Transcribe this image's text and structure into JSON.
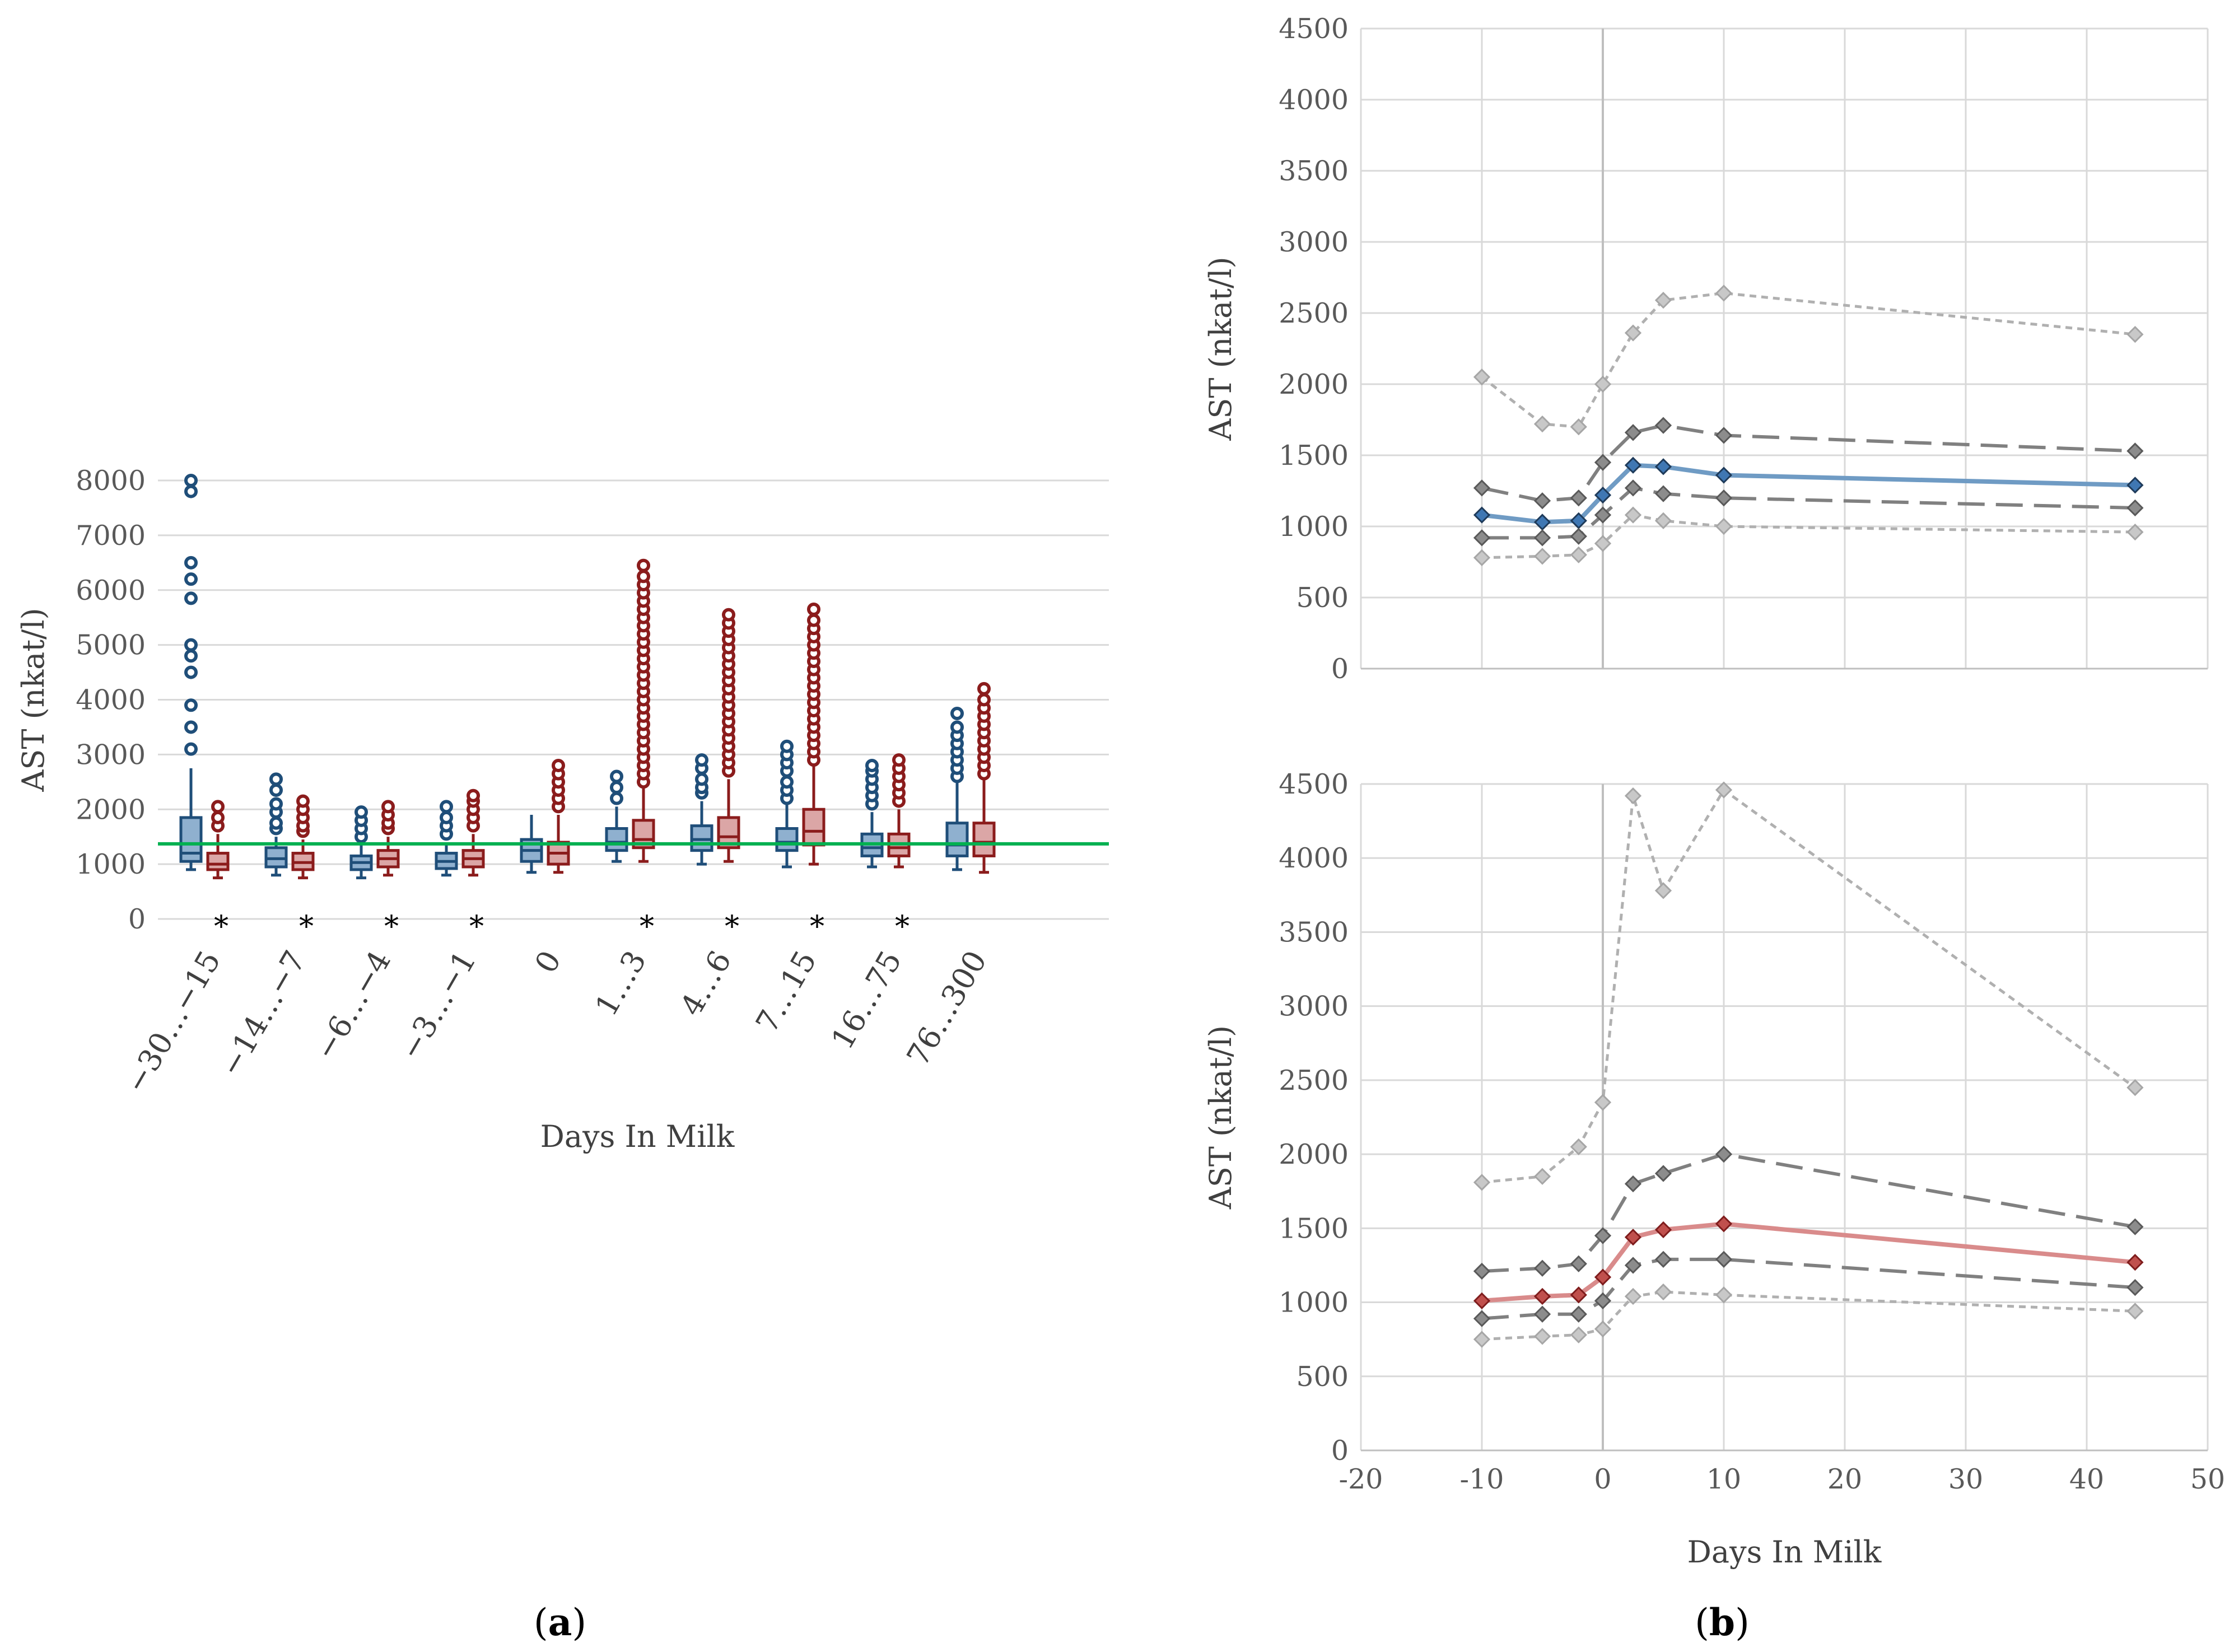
{
  "chart_data": [
    {
      "type": "box",
      "panel_label": "a",
      "xlabel": "Days In Milk",
      "ylabel": "AST (nkat/l)",
      "ylim": [
        0,
        8000
      ],
      "yticks": [
        0,
        1000,
        2000,
        3000,
        4000,
        5000,
        6000,
        7000,
        8000
      ],
      "reference_line": 1370,
      "reference_color": "#00b050",
      "categories": [
        "−30…−15",
        "−14…−7",
        "−6…−4",
        "−3…−1",
        "0",
        "1…3",
        "4…6",
        "7…15",
        "16…75",
        "76…300"
      ],
      "significance": [
        "*",
        "*",
        "*",
        "*",
        "",
        "*",
        "*",
        "*",
        "*",
        ""
      ],
      "series": [
        {
          "color": "#1f4e79",
          "fill": "#8fb0cf",
          "boxes": [
            {
              "whisker_low": 900,
              "q1": 1050,
              "median": 1200,
              "q3": 1850,
              "whisker_high": 2750,
              "outliers": [
                3100,
                3500,
                3900,
                4500,
                4800,
                5000,
                5850,
                6200,
                6500,
                7800,
                8000
              ]
            },
            {
              "whisker_low": 800,
              "q1": 950,
              "median": 1100,
              "q3": 1300,
              "whisker_high": 1500,
              "outliers": [
                1650,
                1750,
                1950,
                2100,
                2350,
                2550
              ]
            },
            {
              "whisker_low": 750,
              "q1": 900,
              "median": 1030,
              "q3": 1150,
              "whisker_high": 1350,
              "outliers": [
                1500,
                1650,
                1800,
                1950
              ]
            },
            {
              "whisker_low": 800,
              "q1": 920,
              "median": 1050,
              "q3": 1200,
              "whisker_high": 1400,
              "outliers": [
                1550,
                1700,
                1850,
                2050
              ]
            },
            {
              "whisker_low": 850,
              "q1": 1050,
              "median": 1250,
              "q3": 1450,
              "whisker_high": 1900,
              "outliers": []
            },
            {
              "whisker_low": 1050,
              "q1": 1250,
              "median": 1400,
              "q3": 1650,
              "whisker_high": 2050,
              "outliers": [
                2200,
                2400,
                2600
              ]
            },
            {
              "whisker_low": 1000,
              "q1": 1250,
              "median": 1450,
              "q3": 1700,
              "whisker_high": 2150,
              "outliers": [
                2300,
                2400,
                2550,
                2750,
                2900
              ]
            },
            {
              "whisker_low": 950,
              "q1": 1250,
              "median": 1400,
              "q3": 1650,
              "whisker_high": 2100,
              "outliers": [
                2200,
                2350,
                2500,
                2700,
                2850,
                3000,
                3150
              ]
            },
            {
              "whisker_low": 950,
              "q1": 1150,
              "median": 1300,
              "q3": 1550,
              "whisker_high": 1950,
              "outliers": [
                2100,
                2250,
                2400,
                2550,
                2700,
                2800
              ]
            },
            {
              "whisker_low": 900,
              "q1": 1150,
              "median": 1350,
              "q3": 1750,
              "whisker_high": 2500,
              "outliers": [
                2600,
                2750,
                2900,
                3050,
                3200,
                3350,
                3500,
                3750
              ]
            }
          ]
        },
        {
          "color": "#8b1c1c",
          "fill": "#dba6a6",
          "boxes": [
            {
              "whisker_low": 750,
              "q1": 900,
              "median": 1000,
              "q3": 1200,
              "whisker_high": 1550,
              "outliers": [
                1700,
                1850,
                2050
              ]
            },
            {
              "whisker_low": 750,
              "q1": 900,
              "median": 1030,
              "q3": 1200,
              "whisker_high": 1450,
              "outliers": [
                1600,
                1700,
                1850,
                2000,
                2150
              ]
            },
            {
              "whisker_low": 800,
              "q1": 950,
              "median": 1100,
              "q3": 1250,
              "whisker_high": 1500,
              "outliers": [
                1650,
                1750,
                1900,
                2050
              ]
            },
            {
              "whisker_low": 800,
              "q1": 950,
              "median": 1100,
              "q3": 1250,
              "whisker_high": 1550,
              "outliers": [
                1700,
                1850,
                2000,
                2150,
                2250
              ]
            },
            {
              "whisker_low": 850,
              "q1": 1000,
              "median": 1200,
              "q3": 1400,
              "whisker_high": 1900,
              "outliers": [
                2050,
                2200,
                2350,
                2500,
                2650,
                2800
              ]
            },
            {
              "whisker_low": 1050,
              "q1": 1300,
              "median": 1450,
              "q3": 1800,
              "whisker_high": 2400,
              "outliers": [
                2500,
                2650,
                2800,
                2950,
                3100,
                3250,
                3400,
                3550,
                3700,
                3850,
                4000,
                4150,
                4300,
                4450,
                4600,
                4750,
                4900,
                5050,
                5200,
                5350,
                5500,
                5650,
                5800,
                5950,
                6100,
                6250,
                6450
              ]
            },
            {
              "whisker_low": 1050,
              "q1": 1300,
              "median": 1500,
              "q3": 1850,
              "whisker_high": 2550,
              "outliers": [
                2700,
                2850,
                3000,
                3150,
                3300,
                3450,
                3600,
                3750,
                3900,
                4050,
                4200,
                4350,
                4500,
                4650,
                4800,
                4950,
                5100,
                5250,
                5400,
                5550
              ]
            },
            {
              "whisker_low": 1000,
              "q1": 1350,
              "median": 1600,
              "q3": 2000,
              "whisker_high": 2800,
              "outliers": [
                2900,
                3050,
                3200,
                3350,
                3500,
                3650,
                3800,
                3950,
                4100,
                4250,
                4400,
                4550,
                4700,
                4850,
                5000,
                5150,
                5300,
                5450,
                5650
              ]
            },
            {
              "whisker_low": 950,
              "q1": 1150,
              "median": 1300,
              "q3": 1550,
              "whisker_high": 2000,
              "outliers": [
                2150,
                2300,
                2450,
                2600,
                2750,
                2900
              ]
            },
            {
              "whisker_low": 850,
              "q1": 1150,
              "median": 1400,
              "q3": 1750,
              "whisker_high": 2550,
              "outliers": [
                2650,
                2800,
                2950,
                3100,
                3250,
                3400,
                3550,
                3700,
                3850,
                4000,
                4200
              ]
            }
          ]
        }
      ]
    },
    {
      "type": "line",
      "panel_label": "b",
      "xlabel": "",
      "ylabel": "AST (nkat/l)",
      "xlim": [
        -20,
        50
      ],
      "ylim": [
        0,
        4500
      ],
      "yticks": [
        0,
        500,
        1000,
        1500,
        2000,
        2500,
        3000,
        3500,
        4000,
        4500
      ],
      "x": [
        -10,
        -5,
        -2,
        0,
        2.5,
        5,
        10,
        44
      ],
      "series": [
        {
          "style": "outer",
          "color": "#b0b0b0",
          "values": [
            2050,
            1720,
            1700,
            2000,
            2360,
            2590,
            2640,
            2350
          ]
        },
        {
          "style": "inner",
          "color": "#808080",
          "values": [
            1270,
            1180,
            1200,
            1450,
            1660,
            1710,
            1640,
            1530
          ]
        },
        {
          "style": "main",
          "color": "#6f9bc4",
          "marker": "#3f77b3",
          "values": [
            1080,
            1030,
            1040,
            1220,
            1430,
            1420,
            1360,
            1290
          ]
        },
        {
          "style": "inner",
          "color": "#808080",
          "values": [
            920,
            920,
            930,
            1080,
            1270,
            1230,
            1200,
            1130
          ]
        },
        {
          "style": "outer",
          "color": "#b0b0b0",
          "values": [
            780,
            790,
            800,
            880,
            1080,
            1040,
            1000,
            960
          ]
        }
      ]
    },
    {
      "type": "line",
      "panel_label": "",
      "xlabel": "Days In Milk",
      "ylabel": "AST (nkat/l)",
      "xlim": [
        -20,
        50
      ],
      "ylim": [
        0,
        4500
      ],
      "xticks": [
        -20,
        -10,
        0,
        10,
        20,
        30,
        40,
        50
      ],
      "yticks": [
        0,
        500,
        1000,
        1500,
        2000,
        2500,
        3000,
        3500,
        4000,
        4500
      ],
      "x": [
        -10,
        -5,
        -2,
        0,
        2.5,
        5,
        10,
        44
      ],
      "series": [
        {
          "style": "outer",
          "color": "#b0b0b0",
          "values": [
            1810,
            1850,
            2050,
            2350,
            4420,
            3780,
            4460,
            2450
          ]
        },
        {
          "style": "inner",
          "color": "#808080",
          "values": [
            1210,
            1230,
            1260,
            1450,
            1800,
            1870,
            2000,
            1510
          ]
        },
        {
          "style": "main",
          "color": "#d98b8b",
          "marker": "#c0504d",
          "values": [
            1010,
            1040,
            1050,
            1170,
            1440,
            1490,
            1530,
            1270
          ]
        },
        {
          "style": "inner",
          "color": "#808080",
          "values": [
            890,
            920,
            920,
            1010,
            1250,
            1290,
            1290,
            1100
          ]
        },
        {
          "style": "outer",
          "color": "#b0b0b0",
          "values": [
            750,
            770,
            780,
            820,
            1040,
            1070,
            1050,
            940
          ]
        }
      ]
    }
  ]
}
